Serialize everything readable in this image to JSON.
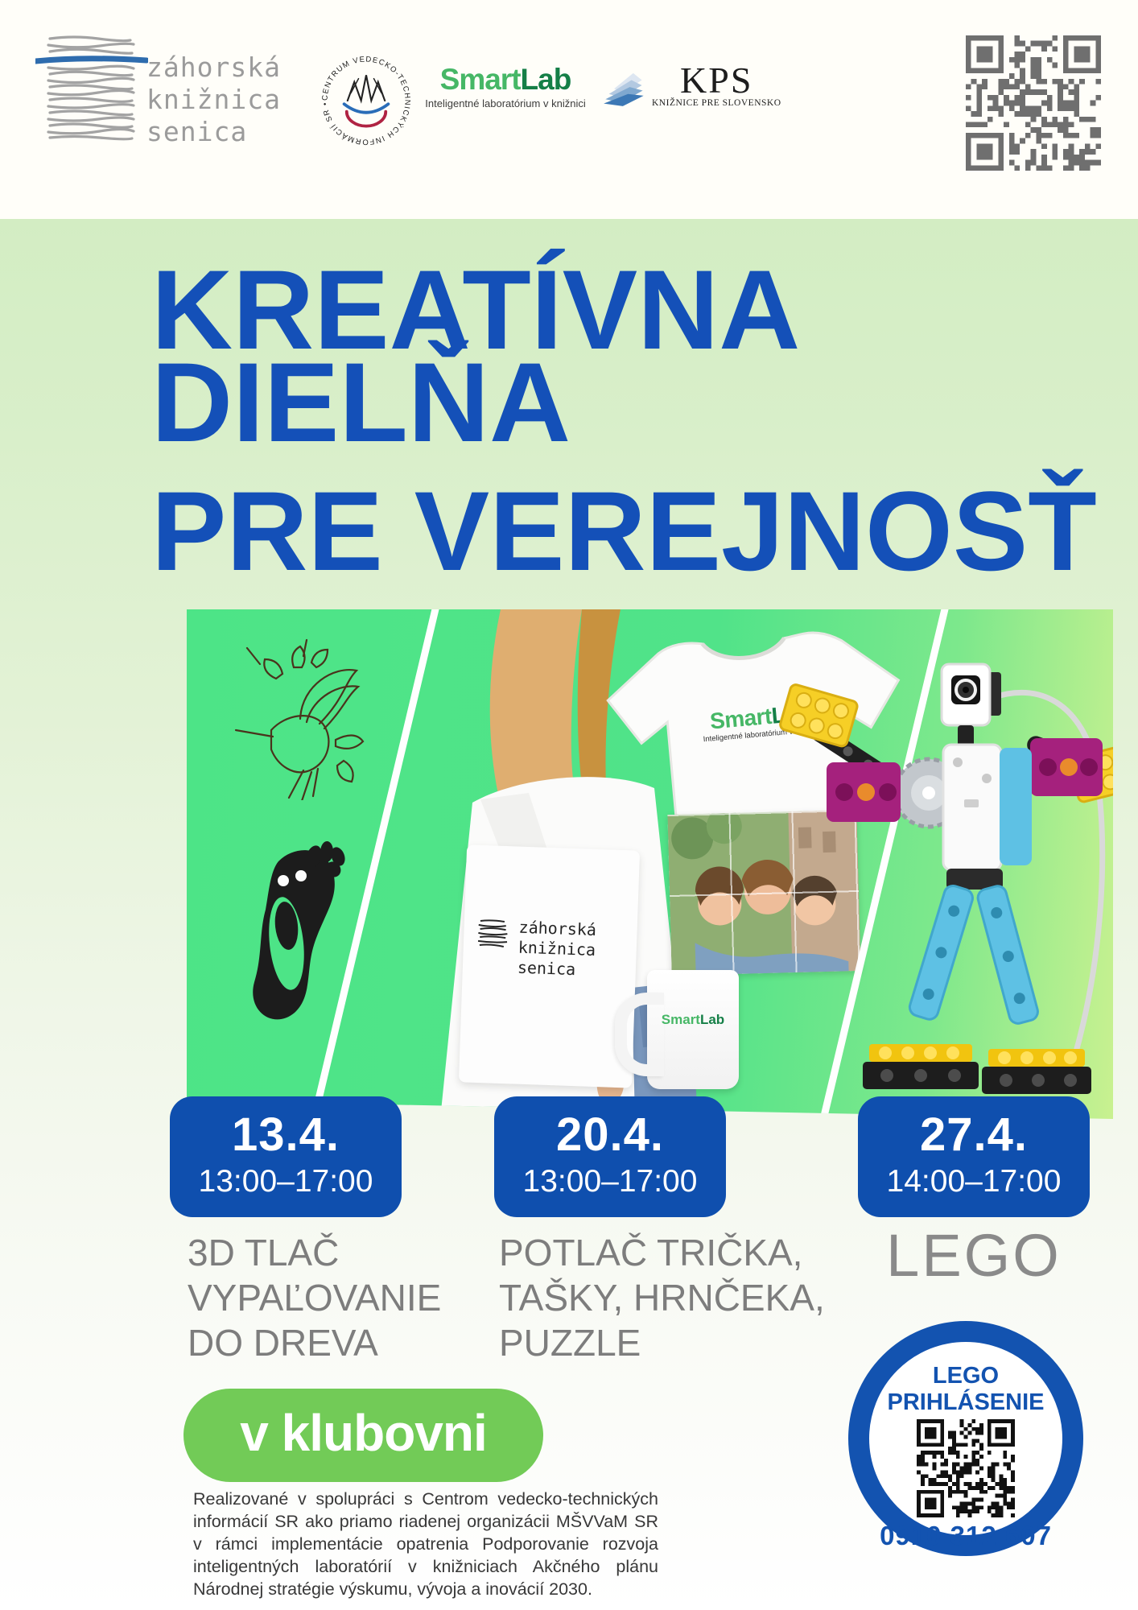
{
  "header": {
    "library_logo": {
      "line1": "záhorská",
      "line2": "knižnica",
      "line3": "senica"
    },
    "cvti_logo": {
      "ring_text": "CENTRUM VEDECKO-TECHNICKÝCH INFORMÁCIÍ SR •"
    },
    "smartlab_logo": {
      "smart": "Smart",
      "lab": "Lab",
      "tagline": "Inteligentné laboratórium v knižnici"
    },
    "kps_logo": {
      "acronym": "KPS",
      "subtitle": "KNIŽNICE PRE SLOVENSKO"
    }
  },
  "title": {
    "line1": "KREATÍVNA",
    "line2": "DIELŇA",
    "line3": "PRE VEREJNOSŤ"
  },
  "collage": {
    "tote_bag_text": {
      "line1": "záhorská",
      "line2": "knižnica",
      "line3": "senica"
    },
    "tshirt_logo": {
      "smart": "Smart",
      "lab": "Lab",
      "tagline": "Inteligentné laboratórium v knižnici"
    },
    "mug_logo": {
      "smart": "Smart",
      "lab": "Lab"
    }
  },
  "sessions": [
    {
      "date": "13.4.",
      "time": "13:00–17:00",
      "activity_lines": [
        "3D TLAČ",
        "VYPAĽOVANIE",
        "DO DREVA"
      ]
    },
    {
      "date": "20.4.",
      "time": "13:00–17:00",
      "activity_lines": [
        "POTLAČ TRIČKA,",
        "TAŠKY, HRNČEKA,",
        "PUZZLE"
      ]
    },
    {
      "date": "27.4.",
      "time": "14:00–17:00",
      "activity_lines": [
        "LEGO"
      ]
    }
  ],
  "location_badge": "v klubovni",
  "lego_signup": {
    "title_line1": "LEGO",
    "title_line2": "PRIHLÁSENIE",
    "phone": "0910 312 607"
  },
  "footer": {
    "text": "Realizované v spolupráci s Centrom vedecko-technických informácií SR ako priamo riadenej organizácii MŠVVaM SR v rámci implementácie opatrenia Podporovanie rozvoja inteligentných laboratórií v knižniciach Akčného plánu Národnej stratégie výskumu, vývoja a inovácií 2030."
  },
  "colors": {
    "title_blue": "#1450b8",
    "badge_blue": "#0f4fae",
    "ring_blue": "#1353b0",
    "pill_green": "#72cb57",
    "collage_green": "#4de487",
    "smart_green": "#46b766",
    "lab_green": "#157f47",
    "qr_gray": "#6f6f6f"
  }
}
